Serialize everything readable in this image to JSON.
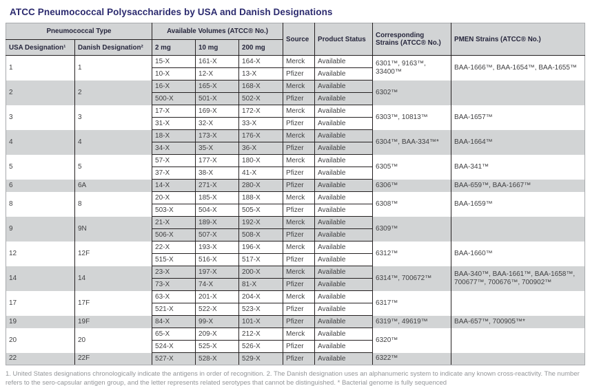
{
  "title": "ATCC Pneumococcal Polysaccharides by USA and Danish Designations",
  "colors": {
    "title_text": "#2b2a6e",
    "header_bg": "#d2d4d5",
    "stripe_bg": "#d2d4d5",
    "grid_line": "#231f20",
    "outer_border": "#a7a9ac",
    "body_text": "#3f3f41",
    "footnote_text": "#939598"
  },
  "header": {
    "pneumococcal_type": "Pneumococcal Type",
    "available_volumes": "Available Volumes (ATCC® No.)",
    "usa_designation": "USA Designation¹",
    "danish_designation": "Danish Designation²",
    "vol_2mg": "2 mg",
    "vol_10mg": "10 mg",
    "vol_200mg": "200 mg",
    "source": "Source",
    "product_status": "Product Status",
    "corresponding_strains": "Corresponding Strains (ATCC® No.)",
    "pmen_strains": "PMEN Strains (ATCC® No.)"
  },
  "groups": [
    {
      "usa": "1",
      "danish": "1",
      "rows": [
        [
          "15-X",
          "161-X",
          "164-X",
          "Merck",
          "Available"
        ],
        [
          "10-X",
          "12-X",
          "13-X",
          "Pfizer",
          "Available"
        ]
      ],
      "strains": "6301™, 9163™, 33400™",
      "pmen": "BAA-1666™, BAA-1654™, BAA-1655™"
    },
    {
      "usa": "2",
      "danish": "2",
      "rows": [
        [
          "16-X",
          "165-X",
          "168-X",
          "Merck",
          "Available"
        ],
        [
          "500-X",
          "501-X",
          "502-X",
          "Pfizer",
          "Available"
        ]
      ],
      "strains": "6302™",
      "pmen": ""
    },
    {
      "usa": "3",
      "danish": "3",
      "rows": [
        [
          "17-X",
          "169-X",
          "172-X",
          "Merck",
          "Available"
        ],
        [
          "31-X",
          "32-X",
          "33-X",
          "Pfizer",
          "Available"
        ]
      ],
      "strains": "6303™, 10813™",
      "pmen": "BAA-1657™"
    },
    {
      "usa": "4",
      "danish": "4",
      "rows": [
        [
          "18-X",
          "173-X",
          "176-X",
          "Merck",
          "Available"
        ],
        [
          "34-X",
          "35-X",
          "36-X",
          "Pfizer",
          "Available"
        ]
      ],
      "strains": "6304™, BAA-334™*",
      "pmen": "BAA-1664™"
    },
    {
      "usa": "5",
      "danish": "5",
      "rows": [
        [
          "57-X",
          "177-X",
          "180-X",
          "Merck",
          "Available"
        ],
        [
          "37-X",
          "38-X",
          "41-X",
          "Pfizer",
          "Available"
        ]
      ],
      "strains": "6305™",
      "pmen": "BAA-341™"
    },
    {
      "usa": "6",
      "danish": "6A",
      "rows": [
        [
          "14-X",
          "271-X",
          "280-X",
          "Pfizer",
          "Available"
        ]
      ],
      "strains": "6306™",
      "pmen": "BAA-659™, BAA-1667™"
    },
    {
      "usa": "8",
      "danish": "8",
      "rows": [
        [
          "20-X",
          "185-X",
          "188-X",
          "Merck",
          "Available"
        ],
        [
          "503-X",
          "504-X",
          "505-X",
          "Pfizer",
          "Available"
        ]
      ],
      "strains": "6308™",
      "pmen": "BAA-1659™"
    },
    {
      "usa": "9",
      "danish": "9N",
      "rows": [
        [
          "21-X",
          "189-X",
          "192-X",
          "Merck",
          "Available"
        ],
        [
          "506-X",
          "507-X",
          "508-X",
          "Pfizer",
          "Available"
        ]
      ],
      "strains": "6309™",
      "pmen": ""
    },
    {
      "usa": "12",
      "danish": "12F",
      "rows": [
        [
          "22-X",
          "193-X",
          "196-X",
          "Merck",
          "Available"
        ],
        [
          "515-X",
          "516-X",
          "517-X",
          "Pfizer",
          "Available"
        ]
      ],
      "strains": "6312™",
      "pmen": "BAA-1660™"
    },
    {
      "usa": "14",
      "danish": "14",
      "rows": [
        [
          "23-X",
          "197-X",
          "200-X",
          "Merck",
          "Available"
        ],
        [
          "73-X",
          "74-X",
          "81-X",
          "Pfizer",
          "Available"
        ]
      ],
      "strains": "6314™, 700672™",
      "pmen": "BAA-340™, BAA-1661™, BAA-1658™, 700677™, 700676™, 700902™"
    },
    {
      "usa": "17",
      "danish": "17F",
      "rows": [
        [
          "63-X",
          "201-X",
          "204-X",
          "Merck",
          "Available"
        ],
        [
          "521-X",
          "522-X",
          "523-X",
          "Pfizer",
          "Available"
        ]
      ],
      "strains": "6317™",
      "pmen": ""
    },
    {
      "usa": "19",
      "danish": "19F",
      "rows": [
        [
          "84-X",
          "99-X",
          "101-X",
          "Pfizer",
          "Available"
        ]
      ],
      "strains": "6319™, 49619™",
      "pmen": "BAA-657™, 700905™*"
    },
    {
      "usa": "20",
      "danish": "20",
      "rows": [
        [
          "65-X",
          "209-X",
          "212-X",
          "Merck",
          "Available"
        ],
        [
          "524-X",
          "525-X",
          "526-X",
          "Pfizer",
          "Available"
        ]
      ],
      "strains": "6320™",
      "pmen": ""
    },
    {
      "usa": "22",
      "danish": "22F",
      "rows": [
        [
          "527-X",
          "528-X",
          "529-X",
          "Pfizer",
          "Available"
        ]
      ],
      "strains": "6322™",
      "pmen": ""
    }
  ],
  "footnote": "1. United States designations chronologically indicate the antigens in order of recognition. 2. The Danish designation uses an alphanumeric system to indicate any known cross-reactivity. The number refers to the sero-capsular antigen group, and the letter represents related serotypes that cannot be distinguished. * Bacterial genome is fully sequenced"
}
